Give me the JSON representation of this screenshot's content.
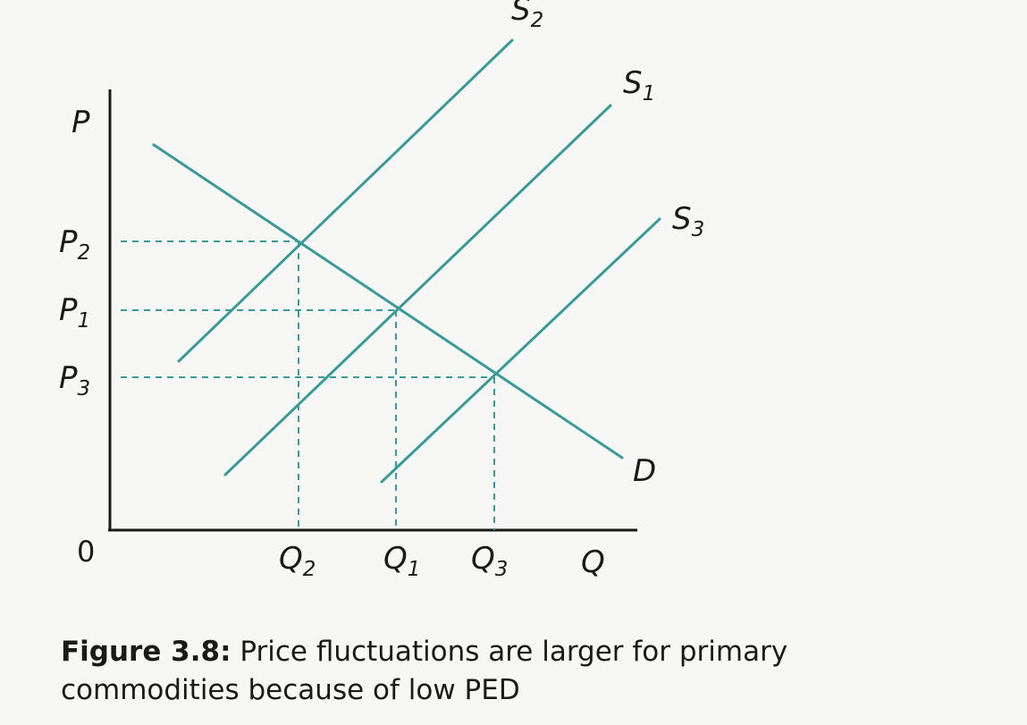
{
  "diagram": {
    "axes": {
      "y_label": {
        "main": "P",
        "sub": ""
      },
      "x_label": {
        "main": "Q",
        "sub": ""
      },
      "origin": "0"
    },
    "price_ticks": [
      {
        "main": "P",
        "sub": "2"
      },
      {
        "main": "P",
        "sub": "1"
      },
      {
        "main": "P",
        "sub": "3"
      }
    ],
    "quantity_ticks": [
      {
        "main": "Q",
        "sub": "2"
      },
      {
        "main": "Q",
        "sub": "1"
      },
      {
        "main": "Q",
        "sub": "3"
      }
    ],
    "curves": [
      {
        "main": "S",
        "sub": "2"
      },
      {
        "main": "S",
        "sub": "1"
      },
      {
        "main": "S",
        "sub": "3"
      },
      {
        "main": "D",
        "sub": ""
      }
    ],
    "line_color": "#3a9a98",
    "axis_color": "#1a1a1a"
  },
  "caption": {
    "label": "Figure 3.8:",
    "text": " Price fluctuations are larger for primary commodities because of low PED"
  }
}
